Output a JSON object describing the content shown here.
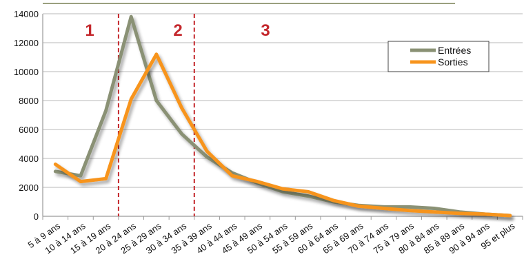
{
  "chart_data": {
    "type": "line",
    "categories": [
      "5 à 9 ans",
      "10 à 14 ans",
      "15 à 19 ans",
      "20 à 24 ans",
      "25 à 29 ans",
      "30 à 34 ans",
      "35 à 39 ans",
      "40 à 44 ans",
      "45 à 49 ans",
      "50 à 54 ans",
      "55 à 59 ans",
      "60 à 64 ans",
      "65 à 69 ans",
      "70 à 74 ans",
      "75 à 79 ans",
      "80 à 84 ans",
      "85 à 89 ans",
      "90 à 94 ans",
      "95 et plus"
    ],
    "series": [
      {
        "name": "Entrées",
        "color": "#8a9174",
        "values": [
          3100,
          2800,
          7300,
          13800,
          8000,
          5700,
          4100,
          3000,
          2300,
          1700,
          1400,
          1000,
          750,
          650,
          650,
          550,
          300,
          150,
          50
        ]
      },
      {
        "name": "Sorties",
        "color": "#f7941d",
        "values": [
          3600,
          2400,
          2600,
          8100,
          11200,
          7500,
          4500,
          2800,
          2400,
          1900,
          1700,
          1100,
          700,
          550,
          400,
          300,
          200,
          150,
          50
        ]
      }
    ],
    "ylim": [
      0,
      14000
    ],
    "yticks": [
      0,
      2000,
      4000,
      6000,
      8000,
      10000,
      12000,
      14000
    ],
    "grid": true,
    "legend_position": "top-right",
    "zones": [
      {
        "label": "1"
      },
      {
        "label": "2",
        "start_after_category": 3
      },
      {
        "label": "3",
        "start_after_category": 6
      }
    ],
    "zone_line_color": "#c4272c",
    "grid_color": "#c8c8c8"
  }
}
